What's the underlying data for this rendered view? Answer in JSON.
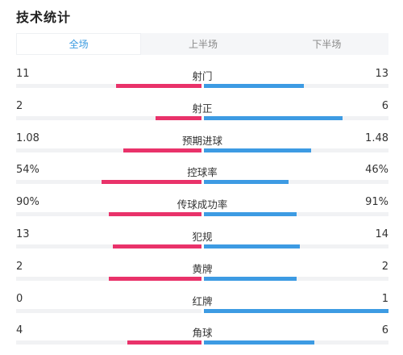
{
  "title": "技术统计",
  "tabs": [
    {
      "label": "全场",
      "active": true
    },
    {
      "label": "上半场",
      "active": false
    },
    {
      "label": "下半场",
      "active": false
    }
  ],
  "colors": {
    "home": "#e9326a",
    "away": "#3d9be3",
    "active_tab": "#3a9be0"
  },
  "stats": [
    {
      "name": "射门",
      "home": "11",
      "away": "13",
      "home_frac": 0.46,
      "away_frac": 0.54
    },
    {
      "name": "射正",
      "home": "2",
      "away": "6",
      "home_frac": 0.25,
      "away_frac": 0.75
    },
    {
      "name": "预期进球",
      "home": "1.08",
      "away": "1.48",
      "home_frac": 0.42,
      "away_frac": 0.58
    },
    {
      "name": "控球率",
      "home": "54%",
      "away": "46%",
      "home_frac": 0.54,
      "away_frac": 0.46
    },
    {
      "name": "传球成功率",
      "home": "90%",
      "away": "91%",
      "home_frac": 0.5,
      "away_frac": 0.5
    },
    {
      "name": "犯规",
      "home": "13",
      "away": "14",
      "home_frac": 0.48,
      "away_frac": 0.52
    },
    {
      "name": "黄牌",
      "home": "2",
      "away": "2",
      "home_frac": 0.5,
      "away_frac": 0.5
    },
    {
      "name": "红牌",
      "home": "0",
      "away": "1",
      "home_frac": 0.0,
      "away_frac": 1.0
    },
    {
      "name": "角球",
      "home": "4",
      "away": "6",
      "home_frac": 0.4,
      "away_frac": 0.6
    }
  ]
}
